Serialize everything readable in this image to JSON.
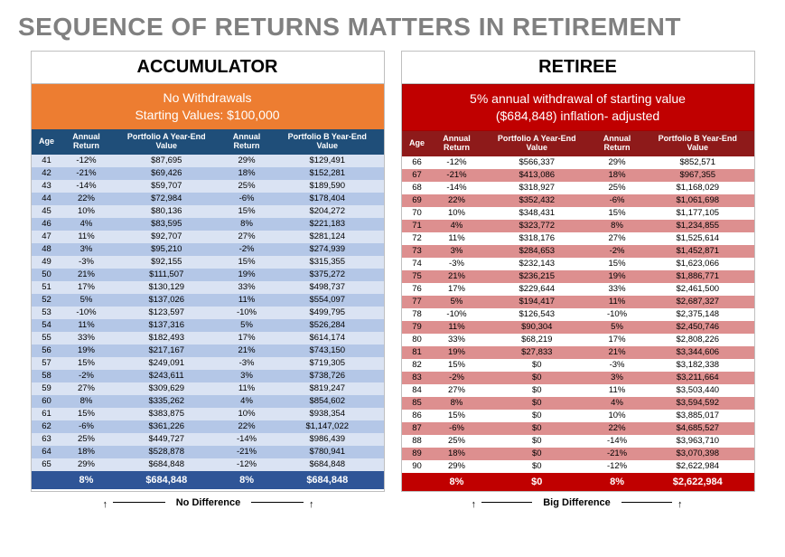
{
  "title": "SEQUENCE OF RETURNS MATTERS IN RETIREMENT",
  "accumulator": {
    "header": "ACCUMULATOR",
    "sub_line1": "No Withdrawals",
    "sub_line2": "Starting Values: $100,000",
    "columns": [
      "Age",
      "Annual Return",
      "Portfolio A Year-End Value",
      "Annual Return",
      "Portfolio B Year-End Value"
    ],
    "rows": [
      [
        "41",
        "-12%",
        "$87,695",
        "29%",
        "$129,491"
      ],
      [
        "42",
        "-21%",
        "$69,426",
        "18%",
        "$152,281"
      ],
      [
        "43",
        "-14%",
        "$59,707",
        "25%",
        "$189,590"
      ],
      [
        "44",
        "22%",
        "$72,984",
        "-6%",
        "$178,404"
      ],
      [
        "45",
        "10%",
        "$80,136",
        "15%",
        "$204,272"
      ],
      [
        "46",
        "4%",
        "$83,595",
        "8%",
        "$221,183"
      ],
      [
        "47",
        "11%",
        "$92,707",
        "27%",
        "$281,124"
      ],
      [
        "48",
        "3%",
        "$95,210",
        "-2%",
        "$274,939"
      ],
      [
        "49",
        "-3%",
        "$92,155",
        "15%",
        "$315,355"
      ],
      [
        "50",
        "21%",
        "$111,507",
        "19%",
        "$375,272"
      ],
      [
        "51",
        "17%",
        "$130,129",
        "33%",
        "$498,737"
      ],
      [
        "52",
        "5%",
        "$137,026",
        "11%",
        "$554,097"
      ],
      [
        "53",
        "-10%",
        "$123,597",
        "-10%",
        "$499,795"
      ],
      [
        "54",
        "11%",
        "$137,316",
        "5%",
        "$526,284"
      ],
      [
        "55",
        "33%",
        "$182,493",
        "17%",
        "$614,174"
      ],
      [
        "56",
        "19%",
        "$217,167",
        "21%",
        "$743,150"
      ],
      [
        "57",
        "15%",
        "$249,091",
        "-3%",
        "$719,305"
      ],
      [
        "58",
        "-2%",
        "$243,611",
        "3%",
        "$738,726"
      ],
      [
        "59",
        "27%",
        "$309,629",
        "11%",
        "$819,247"
      ],
      [
        "60",
        "8%",
        "$335,262",
        "4%",
        "$854,602"
      ],
      [
        "61",
        "15%",
        "$383,875",
        "10%",
        "$938,354"
      ],
      [
        "62",
        "-6%",
        "$361,226",
        "22%",
        "$1,147,022"
      ],
      [
        "63",
        "25%",
        "$449,727",
        "-14%",
        "$986,439"
      ],
      [
        "64",
        "18%",
        "$528,878",
        "-21%",
        "$780,941"
      ],
      [
        "65",
        "29%",
        "$684,848",
        "-12%",
        "$684,848"
      ]
    ],
    "totals": [
      "",
      "8%",
      "$684,848",
      "8%",
      "$684,848"
    ],
    "caption": "No Difference"
  },
  "retiree": {
    "header": "RETIREE",
    "sub_line1": "5% annual withdrawal of starting value",
    "sub_line2": "($684,848) inflation- adjusted",
    "columns": [
      "Age",
      "Annual Return",
      "Portfolio A Year-End Value",
      "Annual Return",
      "Portfolio B Year-End Value"
    ],
    "rows": [
      [
        "66",
        "-12%",
        "$566,337",
        "29%",
        "$852,571"
      ],
      [
        "67",
        "-21%",
        "$413,086",
        "18%",
        "$967,355"
      ],
      [
        "68",
        "-14%",
        "$318,927",
        "25%",
        "$1,168,029"
      ],
      [
        "69",
        "22%",
        "$352,432",
        "-6%",
        "$1,061,698"
      ],
      [
        "70",
        "10%",
        "$348,431",
        "15%",
        "$1,177,105"
      ],
      [
        "71",
        "4%",
        "$323,772",
        "8%",
        "$1,234,855"
      ],
      [
        "72",
        "11%",
        "$318,176",
        "27%",
        "$1,525,614"
      ],
      [
        "73",
        "3%",
        "$284,653",
        "-2%",
        "$1,452,871"
      ],
      [
        "74",
        "-3%",
        "$232,143",
        "15%",
        "$1,623,066"
      ],
      [
        "75",
        "21%",
        "$236,215",
        "19%",
        "$1,886,771"
      ],
      [
        "76",
        "17%",
        "$229,644",
        "33%",
        "$2,461,500"
      ],
      [
        "77",
        "5%",
        "$194,417",
        "11%",
        "$2,687,327"
      ],
      [
        "78",
        "-10%",
        "$126,543",
        "-10%",
        "$2,375,148"
      ],
      [
        "79",
        "11%",
        "$90,304",
        "5%",
        "$2,450,746"
      ],
      [
        "80",
        "33%",
        "$68,219",
        "17%",
        "$2,808,226"
      ],
      [
        "81",
        "19%",
        "$27,833",
        "21%",
        "$3,344,606"
      ],
      [
        "82",
        "15%",
        "$0",
        "-3%",
        "$3,182,338"
      ],
      [
        "83",
        "-2%",
        "$0",
        "3%",
        "$3,211,664"
      ],
      [
        "84",
        "27%",
        "$0",
        "11%",
        "$3,503,440"
      ],
      [
        "85",
        "8%",
        "$0",
        "4%",
        "$3,594,592"
      ],
      [
        "86",
        "15%",
        "$0",
        "10%",
        "$3,885,017"
      ],
      [
        "87",
        "-6%",
        "$0",
        "22%",
        "$4,685,527"
      ],
      [
        "88",
        "25%",
        "$0",
        "-14%",
        "$3,963,710"
      ],
      [
        "89",
        "18%",
        "$0",
        "-21%",
        "$3,070,398"
      ],
      [
        "90",
        "29%",
        "$0",
        "-12%",
        "$2,622,984"
      ]
    ],
    "totals": [
      "",
      "8%",
      "$0",
      "8%",
      "$2,622,984"
    ],
    "caption": "Big Difference"
  },
  "colors": {
    "title": "#808080",
    "orange": "#ed7d31",
    "acc_th": "#1f4e79",
    "acc_even": "#dae3f3",
    "acc_odd": "#b4c7e7",
    "acc_total": "#2f5597",
    "ret_sub": "#c00000",
    "ret_th": "#8e1a1a",
    "ret_even": "#ffffff",
    "ret_odd": "#dd8f8f",
    "ret_total": "#c00000"
  }
}
